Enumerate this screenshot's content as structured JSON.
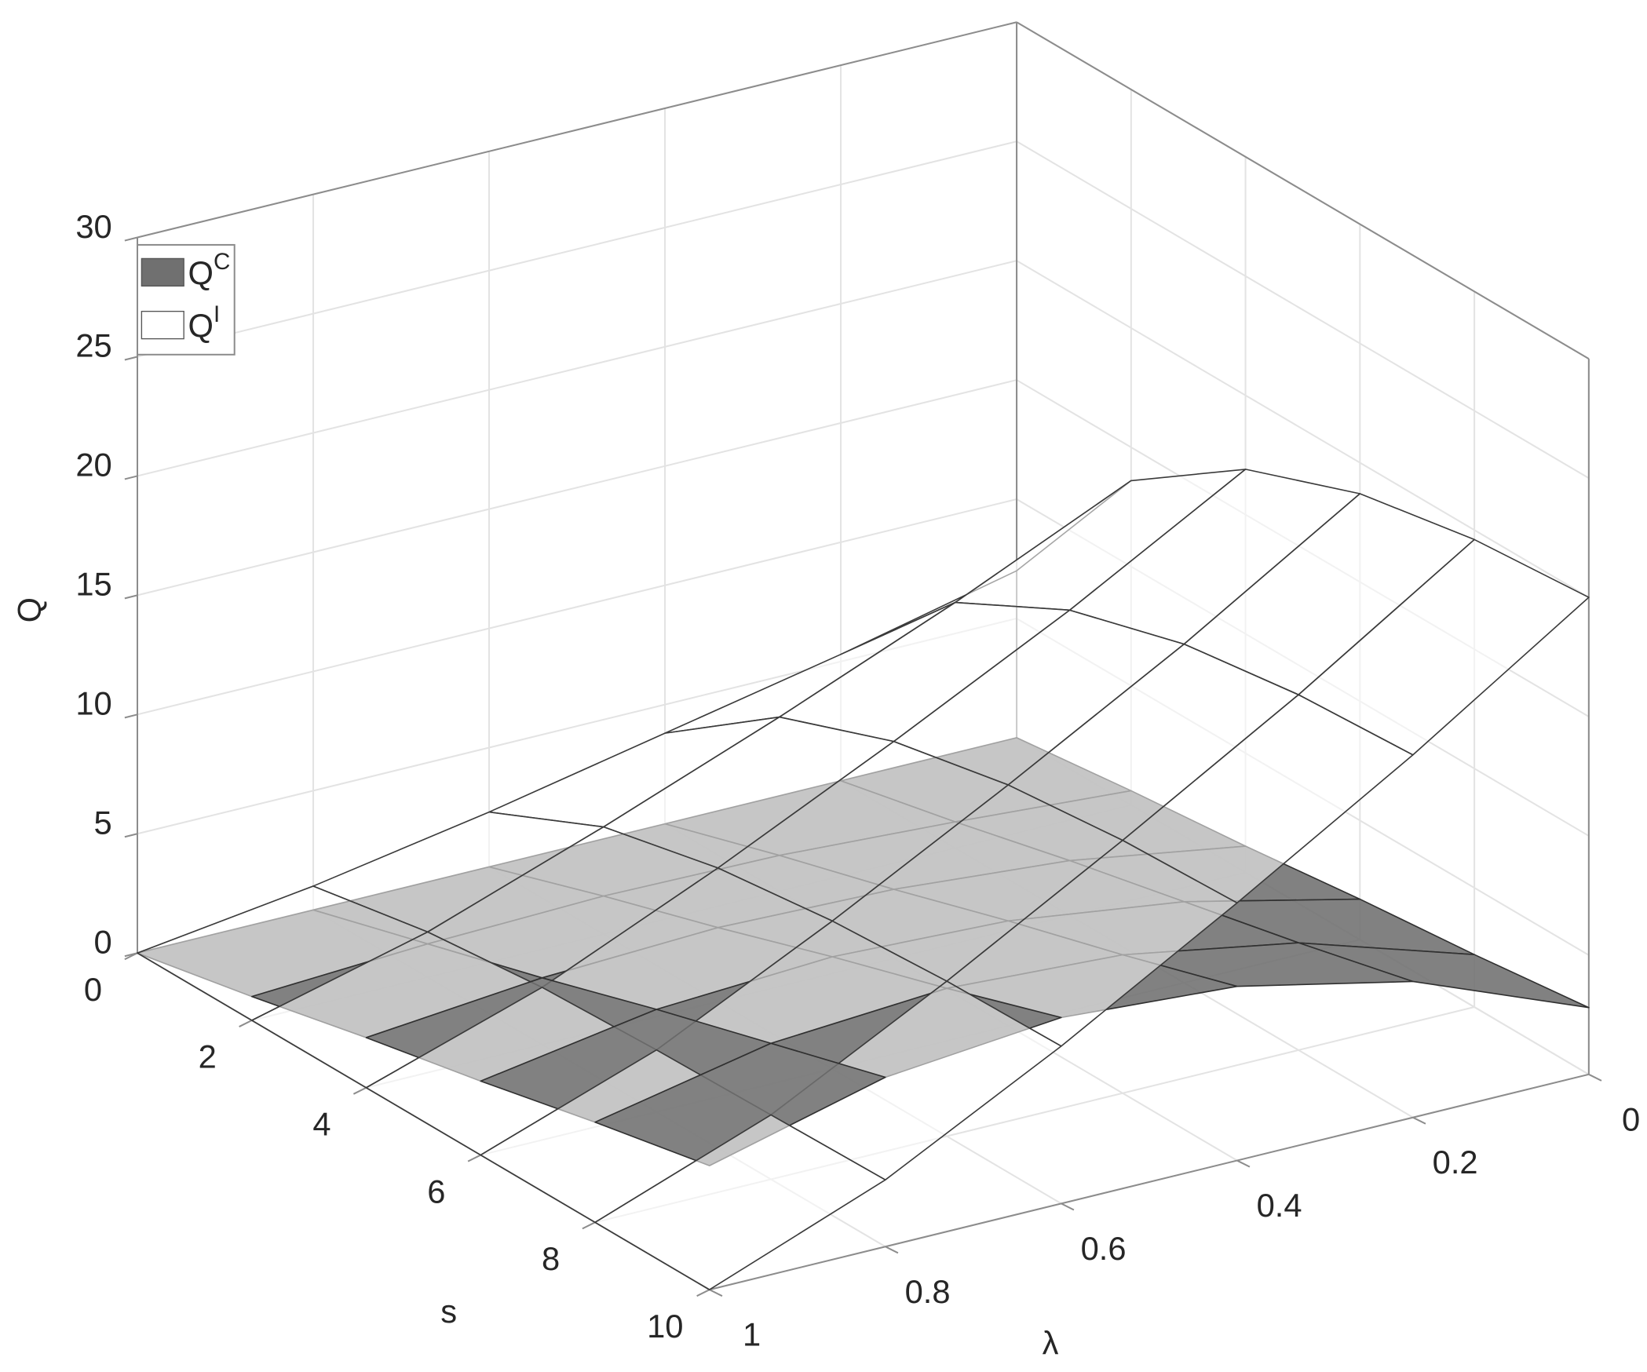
{
  "chart_data": {
    "type": "surface",
    "xlabel": "s",
    "ylabel": "λ",
    "zlabel": "Q",
    "x": [
      0,
      2,
      4,
      6,
      8,
      10
    ],
    "y": [
      0,
      0.2,
      0.4,
      0.6,
      0.8,
      1
    ],
    "xlim": [
      0,
      10
    ],
    "xticks": [
      0,
      2,
      4,
      6,
      8,
      10
    ],
    "ylim": [
      0,
      1
    ],
    "yticks": [
      0,
      0.2,
      0.4,
      0.6,
      0.8,
      1
    ],
    "zlim": [
      0,
      30
    ],
    "zticks": [
      0,
      5,
      10,
      15,
      20,
      25,
      30
    ],
    "grid": true,
    "legend": "upper left",
    "series": [
      {
        "name": "QC",
        "color": "#707070",
        "values": [
          [
            0,
            0,
            0,
            0,
            0,
            0
          ],
          [
            0.6,
            1.1,
            1.5,
            1.6,
            1.4,
            1.0
          ],
          [
            1.1,
            2.3,
            2.9,
            3.1,
            2.8,
            2.1
          ],
          [
            1.7,
            3.4,
            4.4,
            4.7,
            4.3,
            3.1
          ],
          [
            2.2,
            4.5,
            5.8,
            6.2,
            5.7,
            4.2
          ],
          [
            2.8,
            5.7,
            7.3,
            7.8,
            7.1,
            5.2
          ]
        ]
      },
      {
        "name": "QI",
        "color": "#ffffff",
        "values": [
          [
            7,
            5.3,
            3.8,
            2.3,
            1.0,
            0
          ],
          [
            13.6,
            10.3,
            7.3,
            4.5,
            1.9,
            0
          ],
          [
            16.9,
            12.8,
            9.1,
            5.6,
            2.4,
            0
          ],
          [
            18.7,
            14.2,
            10.1,
            6.2,
            2.6,
            0
          ],
          [
            19.6,
            14.9,
            10.6,
            6.5,
            2.7,
            0
          ],
          [
            20.0,
            15.2,
            10.8,
            6.6,
            2.8,
            0
          ]
        ]
      }
    ]
  }
}
